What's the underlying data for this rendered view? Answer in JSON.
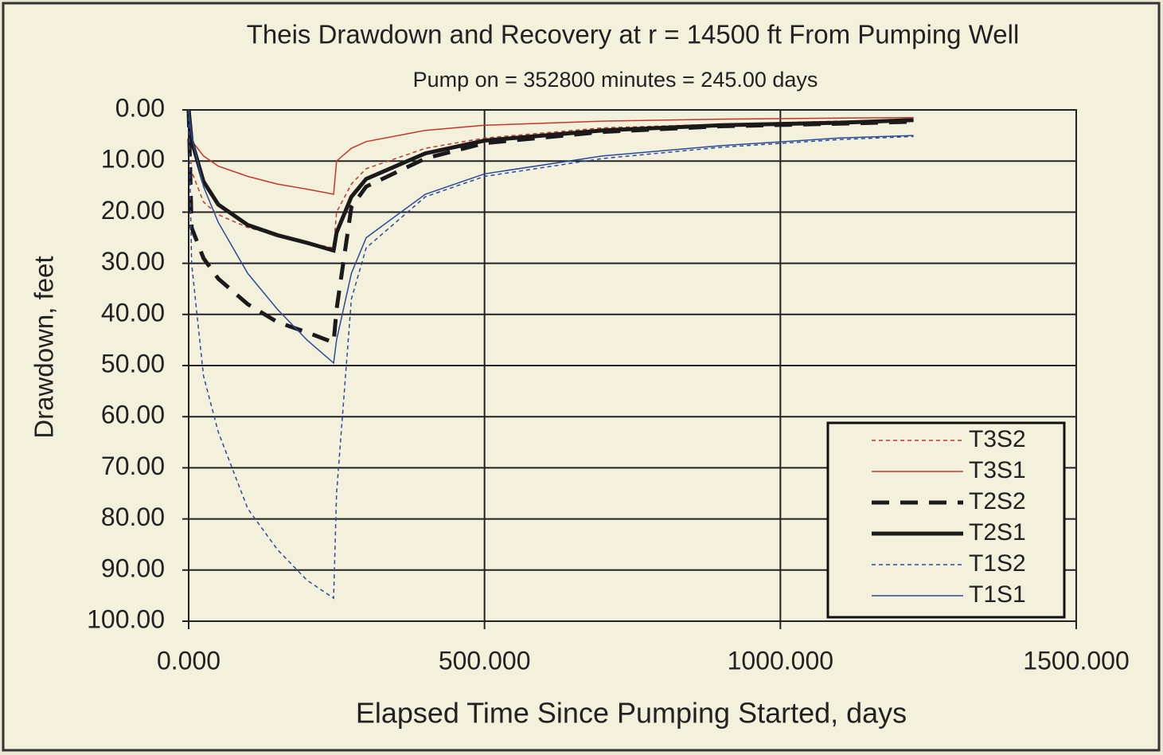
{
  "chart_data": {
    "type": "line",
    "title": "Theis Drawdown and Recovery at r = 14500 ft From Pumping Well",
    "subtitle": "Pump on = 352800 minutes = 245.00 days",
    "x_label": "Elapsed Time Since Pumping Started, days",
    "y_label": "Drawdown, feet",
    "x": [
      0,
      5,
      25,
      50,
      100,
      150,
      200,
      245,
      250,
      275,
      300,
      400,
      500,
      700,
      900,
      1100,
      1225
    ],
    "series": [
      {
        "name": "T3S2",
        "color": "#c0392b",
        "dashed": true,
        "width": 1.5,
        "values": [
          0,
          12,
          18,
          20.5,
          23,
          24.5,
          26,
          27,
          20,
          14.5,
          11.5,
          7.5,
          5.5,
          3.5,
          2.8,
          2.2,
          2
        ]
      },
      {
        "name": "T3S1",
        "color": "#c0392b",
        "dashed": false,
        "width": 1.5,
        "values": [
          0,
          6,
          9,
          11,
          13,
          14.5,
          15.5,
          16.5,
          10,
          7.5,
          6.2,
          4,
          3,
          2.2,
          1.8,
          1.6,
          1.5
        ]
      },
      {
        "name": "T2S2",
        "color": "#1a1a1a",
        "dashed": true,
        "width": 5,
        "values": [
          0,
          23,
          29,
          33,
          38,
          41.5,
          43.5,
          45.5,
          39,
          19,
          15,
          9.5,
          6.5,
          4.3,
          3.2,
          2.7,
          2.3
        ]
      },
      {
        "name": "T2S1",
        "color": "#1a1a1a",
        "dashed": false,
        "width": 5,
        "values": [
          0,
          6,
          14,
          18.5,
          22.5,
          24.5,
          26,
          27.5,
          24,
          17,
          13.5,
          8.5,
          6,
          4,
          3,
          2.5,
          2
        ]
      },
      {
        "name": "T1S2",
        "color": "#2a4a9a",
        "dashed": true,
        "width": 1.5,
        "values": [
          0,
          30,
          52,
          63,
          78,
          86,
          92,
          95.5,
          75,
          37,
          27,
          17,
          13,
          9.5,
          7.3,
          5.8,
          5.2
        ]
      },
      {
        "name": "T1S1",
        "color": "#2a4a9a",
        "dashed": false,
        "width": 1.5,
        "values": [
          0,
          5,
          15,
          22,
          32,
          39,
          45,
          49.5,
          45,
          32,
          25,
          16.5,
          12.5,
          9,
          7,
          5.5,
          5
        ]
      }
    ],
    "xlim": [
      0,
      1500
    ],
    "xticks": [
      {
        "value": 0,
        "label": "0.000"
      },
      {
        "value": 500,
        "label": "500.000"
      },
      {
        "value": 1000,
        "label": "1000.000"
      },
      {
        "value": 1500,
        "label": "1500.000"
      }
    ],
    "ylim": [
      0,
      100
    ],
    "y_inverted": true,
    "yticks": [
      {
        "value": 0,
        "label": "0.00"
      },
      {
        "value": 10,
        "label": "10.00"
      },
      {
        "value": 20,
        "label": "20.00"
      },
      {
        "value": 30,
        "label": "30.00"
      },
      {
        "value": 40,
        "label": "40.00"
      },
      {
        "value": 50,
        "label": "50.00"
      },
      {
        "value": 60,
        "label": "60.00"
      },
      {
        "value": 70,
        "label": "70.00"
      },
      {
        "value": 80,
        "label": "80.00"
      },
      {
        "value": 90,
        "label": "90.00"
      },
      {
        "value": 100,
        "label": "100.00"
      }
    ],
    "grid": true,
    "legend": "bottom-right"
  }
}
